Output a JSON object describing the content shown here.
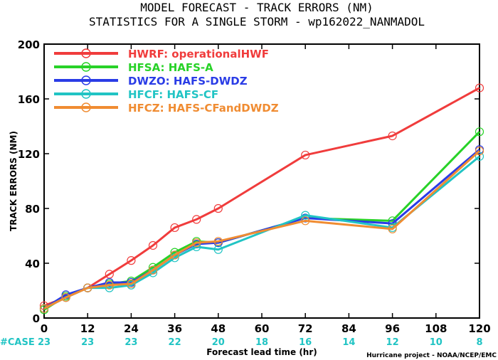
{
  "header": {
    "title_line1": "MODEL FORECAST - TRACK ERRORS (NM)",
    "title_line2": "STATISTICS FOR A SINGLE STORM - wp162022_NANMADOL"
  },
  "footer": {
    "credit": "Hurricane project - NOAA/NCEP/EMC"
  },
  "cases": {
    "label": "#CASE",
    "counts": [
      {
        "x": 0,
        "n": "23"
      },
      {
        "x": 12,
        "n": "23"
      },
      {
        "x": 24,
        "n": "23"
      },
      {
        "x": 36,
        "n": "22"
      },
      {
        "x": 48,
        "n": "20"
      },
      {
        "x": 60,
        "n": "18"
      },
      {
        "x": 72,
        "n": "16"
      },
      {
        "x": 84,
        "n": "14"
      },
      {
        "x": 96,
        "n": "12"
      },
      {
        "x": 108,
        "n": "10"
      },
      {
        "x": 120,
        "n": "8"
      }
    ]
  },
  "chart_data": {
    "type": "line",
    "title": "MODEL FORECAST - TRACK ERRORS (NM)",
    "subtitle": "STATISTICS FOR A SINGLE STORM - wp162022_NANMADOL",
    "xlabel": "Forecast lead time (hr)",
    "ylabel": "TRACK ERRORS (NM)",
    "xlim": [
      0,
      120
    ],
    "ylim": [
      0,
      200
    ],
    "xticks": [
      0,
      12,
      24,
      36,
      48,
      60,
      72,
      84,
      96,
      108,
      120
    ],
    "yticks": [
      0,
      40,
      80,
      120,
      160,
      200
    ],
    "grid": false,
    "legend_position": "top-left",
    "series": [
      {
        "name": "HWRF: operationalHWF",
        "color": "#f03c3c",
        "x": [
          0,
          6,
          12,
          18,
          24,
          30,
          36,
          42,
          48,
          72,
          96,
          120
        ],
        "y": [
          9,
          15,
          22,
          32,
          42,
          53,
          66,
          72,
          80,
          119,
          133,
          168
        ]
      },
      {
        "name": "HFSA: HAFS-A",
        "color": "#28d228",
        "x": [
          0,
          6,
          12,
          18,
          24,
          30,
          36,
          42,
          48,
          72,
          96,
          120
        ],
        "y": [
          6,
          16,
          22,
          25,
          27,
          37,
          48,
          56,
          55,
          73,
          71,
          136
        ]
      },
      {
        "name": "DWZO: HAFS-DWDZ",
        "color": "#2a3ce6",
        "x": [
          0,
          6,
          12,
          18,
          24,
          30,
          36,
          42,
          48,
          72,
          96,
          120
        ],
        "y": [
          7,
          17,
          22,
          26,
          26,
          35,
          46,
          54,
          55,
          73,
          69,
          123
        ]
      },
      {
        "name": "HFCF: HAFS-CF",
        "color": "#21c4c4",
        "x": [
          0,
          6,
          12,
          18,
          24,
          30,
          36,
          42,
          48,
          72,
          96,
          120
        ],
        "y": [
          7,
          15,
          22,
          22,
          24,
          33,
          44,
          52,
          50,
          75,
          66,
          118
        ]
      },
      {
        "name": "HFCZ: HAFS-CFandDWDZ",
        "color": "#f08c32",
        "x": [
          0,
          6,
          12,
          18,
          24,
          30,
          36,
          42,
          48,
          72,
          96,
          120
        ],
        "y": [
          7,
          15,
          22,
          24,
          25,
          35,
          46,
          55,
          56,
          71,
          65,
          122
        ]
      }
    ]
  }
}
